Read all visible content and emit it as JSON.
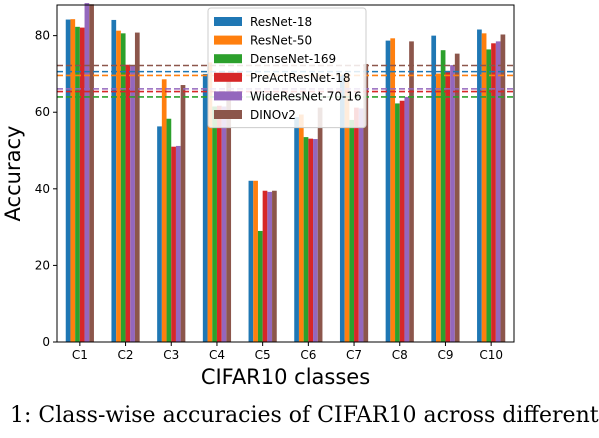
{
  "chart_data": {
    "type": "bar",
    "title": "",
    "xlabel": "CIFAR10 classes",
    "ylabel": "Accuracy",
    "ylim": [
      0,
      88
    ],
    "yticks": [
      0,
      20,
      40,
      60,
      80
    ],
    "grid": false,
    "legend_position": "top-center",
    "categories": [
      "C1",
      "C2",
      "C3",
      "C4",
      "C5",
      "C6",
      "C7",
      "C8",
      "C9",
      "C10"
    ],
    "series": [
      {
        "name": "ResNet-18",
        "color": "#1f77b4",
        "values": [
          84.2,
          84.1,
          56.3,
          70.0,
          42.1,
          58.7,
          69.8,
          78.7,
          80.0,
          81.6
        ]
      },
      {
        "name": "ResNet-50",
        "color": "#ff7f0e",
        "values": [
          84.3,
          81.3,
          68.6,
          73.0,
          42.1,
          59.4,
          70.0,
          79.3,
          70.1,
          80.6
        ]
      },
      {
        "name": "DenseNet-169",
        "color": "#2ca02c",
        "values": [
          82.3,
          80.6,
          58.3,
          61.5,
          29.0,
          53.5,
          58.0,
          62.3,
          76.2,
          76.4
        ]
      },
      {
        "name": "PreActResNet-18",
        "color": "#d62728",
        "values": [
          82.1,
          72.4,
          51.0,
          61.7,
          39.5,
          53.1,
          61.2,
          63.0,
          70.8,
          78.0
        ]
      },
      {
        "name": "WideResNet-70-16",
        "color": "#9467bd",
        "values": [
          88.5,
          72.2,
          51.2,
          61.5,
          39.2,
          53.0,
          61.0,
          64.0,
          72.3,
          78.5
        ]
      },
      {
        "name": "DINOv2",
        "color": "#8c564b",
        "values": [
          88.2,
          80.8,
          67.1,
          70.0,
          39.5,
          61.2,
          72.6,
          78.5,
          75.3,
          80.3
        ]
      }
    ],
    "reference_lines": [
      {
        "series": "DINOv2",
        "color": "#8c564b",
        "value": 72.2
      },
      {
        "series": "ResNet-18",
        "color": "#1f77b4",
        "value": 70.6
      },
      {
        "series": "ResNet-50",
        "color": "#ff7f0e",
        "value": 69.6
      },
      {
        "series": "WideResNet-70-16",
        "color": "#9467bd",
        "value": 66.1
      },
      {
        "series": "PreActResNet-18",
        "color": "#d62728",
        "value": 65.4
      },
      {
        "series": "DenseNet-169",
        "color": "#2ca02c",
        "value": 64.0
      }
    ]
  },
  "caption": "1: Class-wise accuracies of CIFAR10 across different"
}
